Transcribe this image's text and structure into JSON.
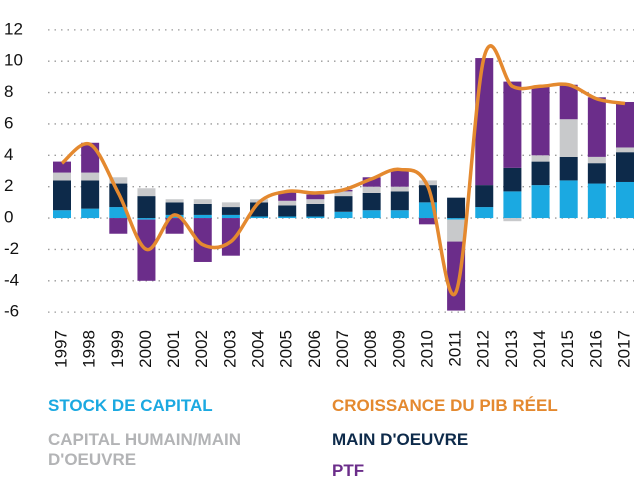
{
  "chart_data": {
    "type": "bar",
    "stacked": true,
    "categories": [
      "1997",
      "1998",
      "1999",
      "2000",
      "2001",
      "2002",
      "2003",
      "2004",
      "2005",
      "2006",
      "2007",
      "2008",
      "2009",
      "2010",
      "2011",
      "2012",
      "2013",
      "2014",
      "2015",
      "2016",
      "2017"
    ],
    "series": [
      {
        "name": "STOCK DE CAPITAL",
        "color": "#1ba9e1",
        "values": [
          0.5,
          0.6,
          0.7,
          -0.1,
          0.2,
          0.2,
          0.2,
          0.1,
          0.1,
          0.1,
          0.4,
          0.5,
          0.5,
          1.0,
          -0.1,
          0.7,
          1.7,
          2.1,
          2.4,
          2.2,
          2.3
        ]
      },
      {
        "name": "CAPITAL HUMAIN/MAIN D'OEUVRE",
        "color": "#c8c9cb",
        "values": [
          0.5,
          0.5,
          0.4,
          0.5,
          0.2,
          0.3,
          0.3,
          0.2,
          0.3,
          0.3,
          0.3,
          0.4,
          0.3,
          0.3,
          -1.4,
          0,
          -0.2,
          0.4,
          2.4,
          0.4,
          0.3
        ]
      },
      {
        "name": "MAIN D'OEUVRE",
        "color": "#0d2a4a",
        "values": [
          1.9,
          1.8,
          1.5,
          1.4,
          0.8,
          0.7,
          0.5,
          0.9,
          0.7,
          0.8,
          1.0,
          1.1,
          1.2,
          1.1,
          1.3,
          1.4,
          1.5,
          1.5,
          1.5,
          1.3,
          1.9
        ]
      },
      {
        "name": "PTF",
        "color": "#6b2d8a",
        "values": [
          0.7,
          1.9,
          -1.0,
          -3.9,
          -1.0,
          -2.8,
          -2.4,
          0,
          0.6,
          0.3,
          0.1,
          0.6,
          1.1,
          -0.4,
          -4.4,
          8.1,
          5.5,
          4.4,
          2.2,
          3.8,
          2.9
        ]
      }
    ],
    "line_series": {
      "name": "CROISSANCE DU PIB RÉEL",
      "color": "#e4892f",
      "values": [
        3.5,
        4.7,
        1.6,
        -2.0,
        0.2,
        -1.7,
        -1.5,
        1.0,
        1.7,
        1.6,
        1.8,
        2.5,
        3.1,
        2.0,
        -4.7,
        10.3,
        8.4,
        8.4,
        8.5,
        7.6,
        7.3
      ]
    },
    "ylim": [
      -6.5,
      12.5
    ],
    "yticks": [
      -6,
      -4,
      -2,
      0,
      2,
      4,
      6,
      8,
      10,
      12
    ],
    "grid": true
  }
}
